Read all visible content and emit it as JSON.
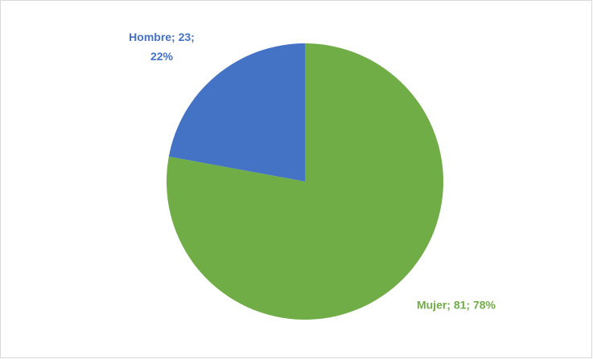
{
  "chart_data": {
    "type": "pie",
    "categories": [
      "Hombre",
      "Mujer"
    ],
    "values": [
      23,
      81
    ],
    "value_labels": [
      "Hombre; 23; 22%",
      "Mujer; 81; 78%"
    ],
    "colors": [
      "#4472c4",
      "#70ad47"
    ]
  }
}
